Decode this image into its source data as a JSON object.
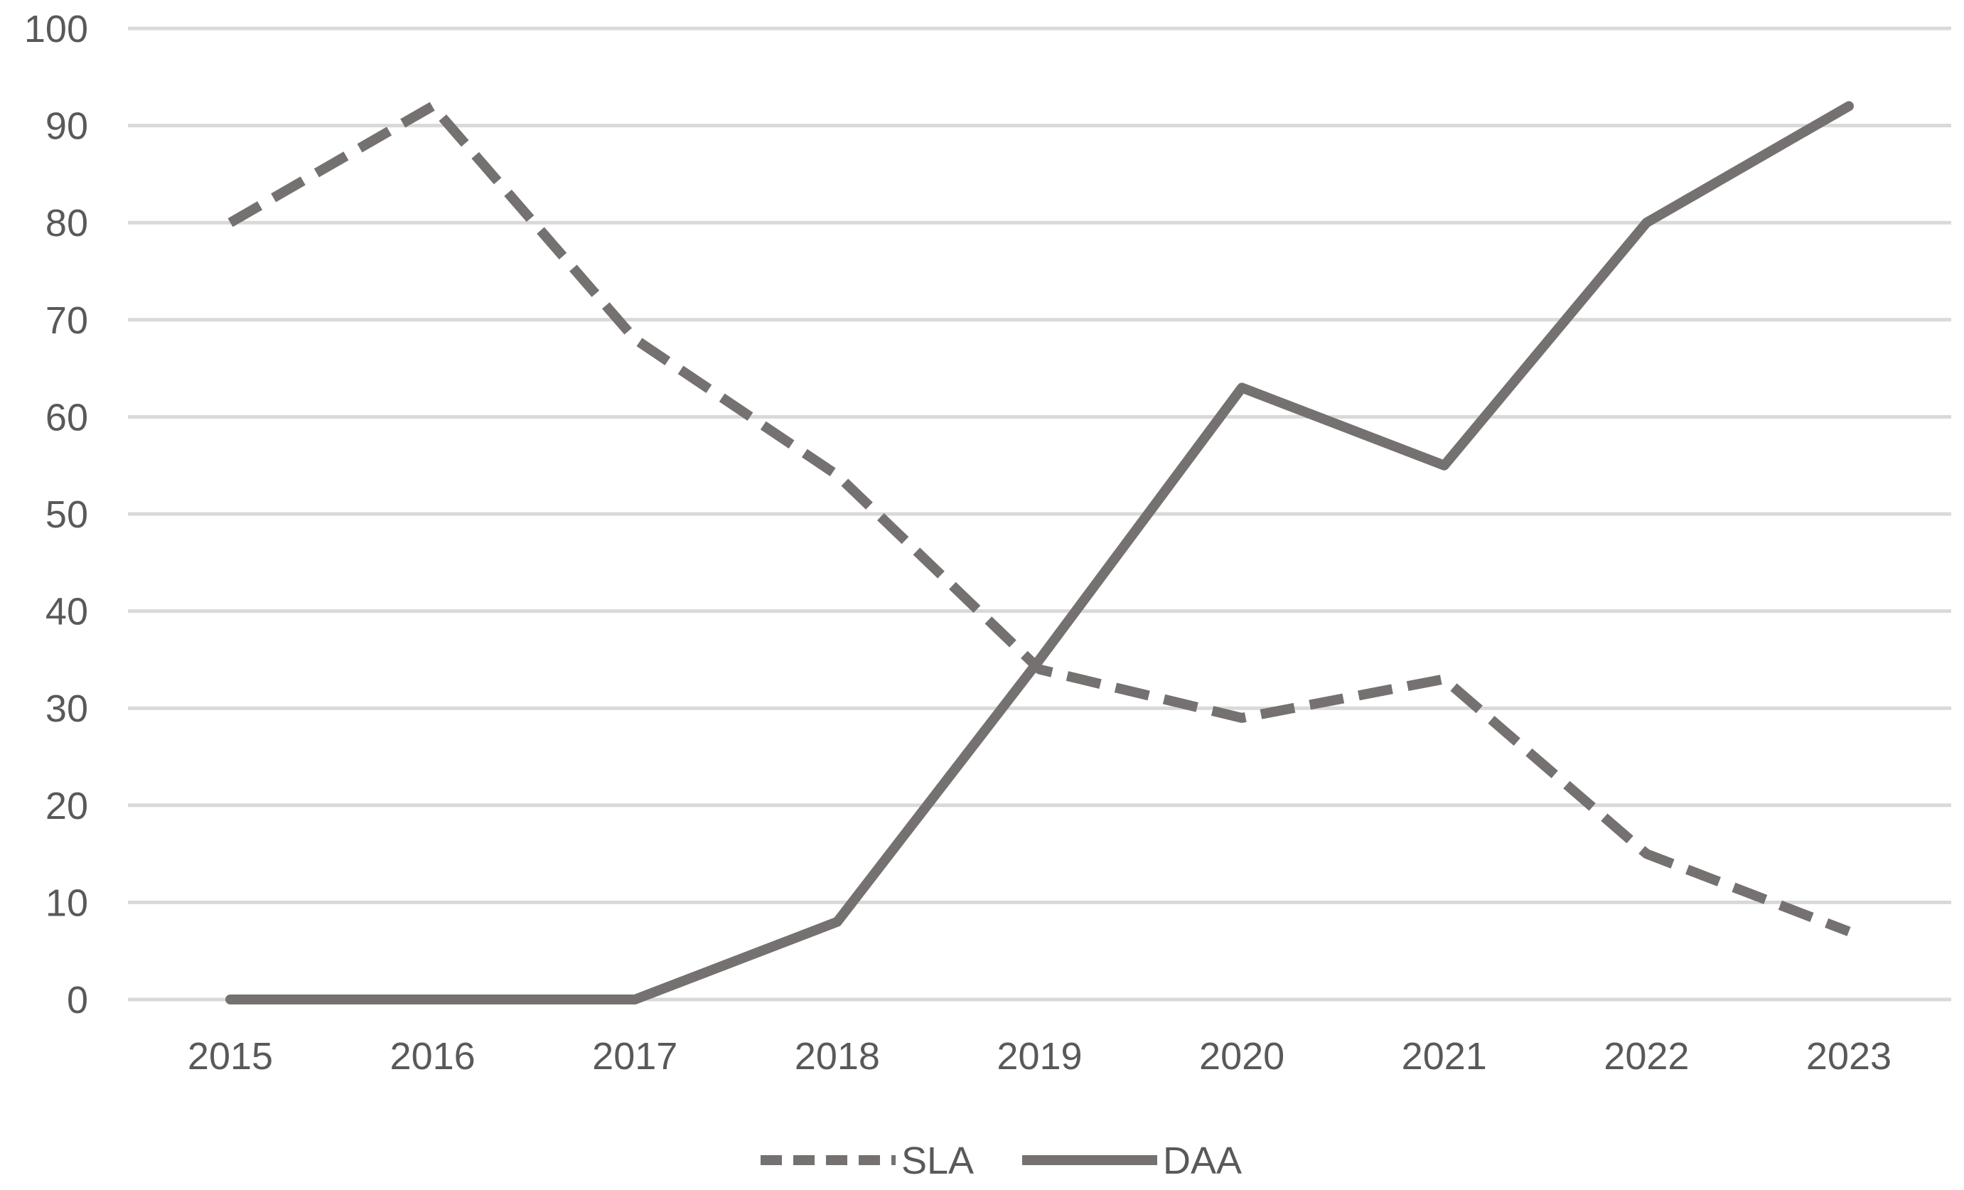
{
  "chart_data": {
    "type": "line",
    "title": "",
    "xlabel": "",
    "ylabel": "",
    "categories": [
      "2015",
      "2016",
      "2017",
      "2018",
      "2019",
      "2020",
      "2021",
      "2022",
      "2023"
    ],
    "ylim": [
      0,
      100
    ],
    "yticks": [
      "0",
      "10",
      "20",
      "30",
      "40",
      "50",
      "60",
      "70",
      "80",
      "90",
      "100"
    ],
    "grid": true,
    "legend_position": "bottom",
    "series": [
      {
        "name": "SLA",
        "values": [
          80,
          92,
          68,
          54,
          34,
          29,
          33,
          15,
          7
        ],
        "style": "dashed",
        "color": "#767171"
      },
      {
        "name": "DAA",
        "values": [
          0,
          0,
          0,
          8,
          35,
          63,
          55,
          80,
          92
        ],
        "style": "solid",
        "color": "#767171"
      }
    ]
  }
}
